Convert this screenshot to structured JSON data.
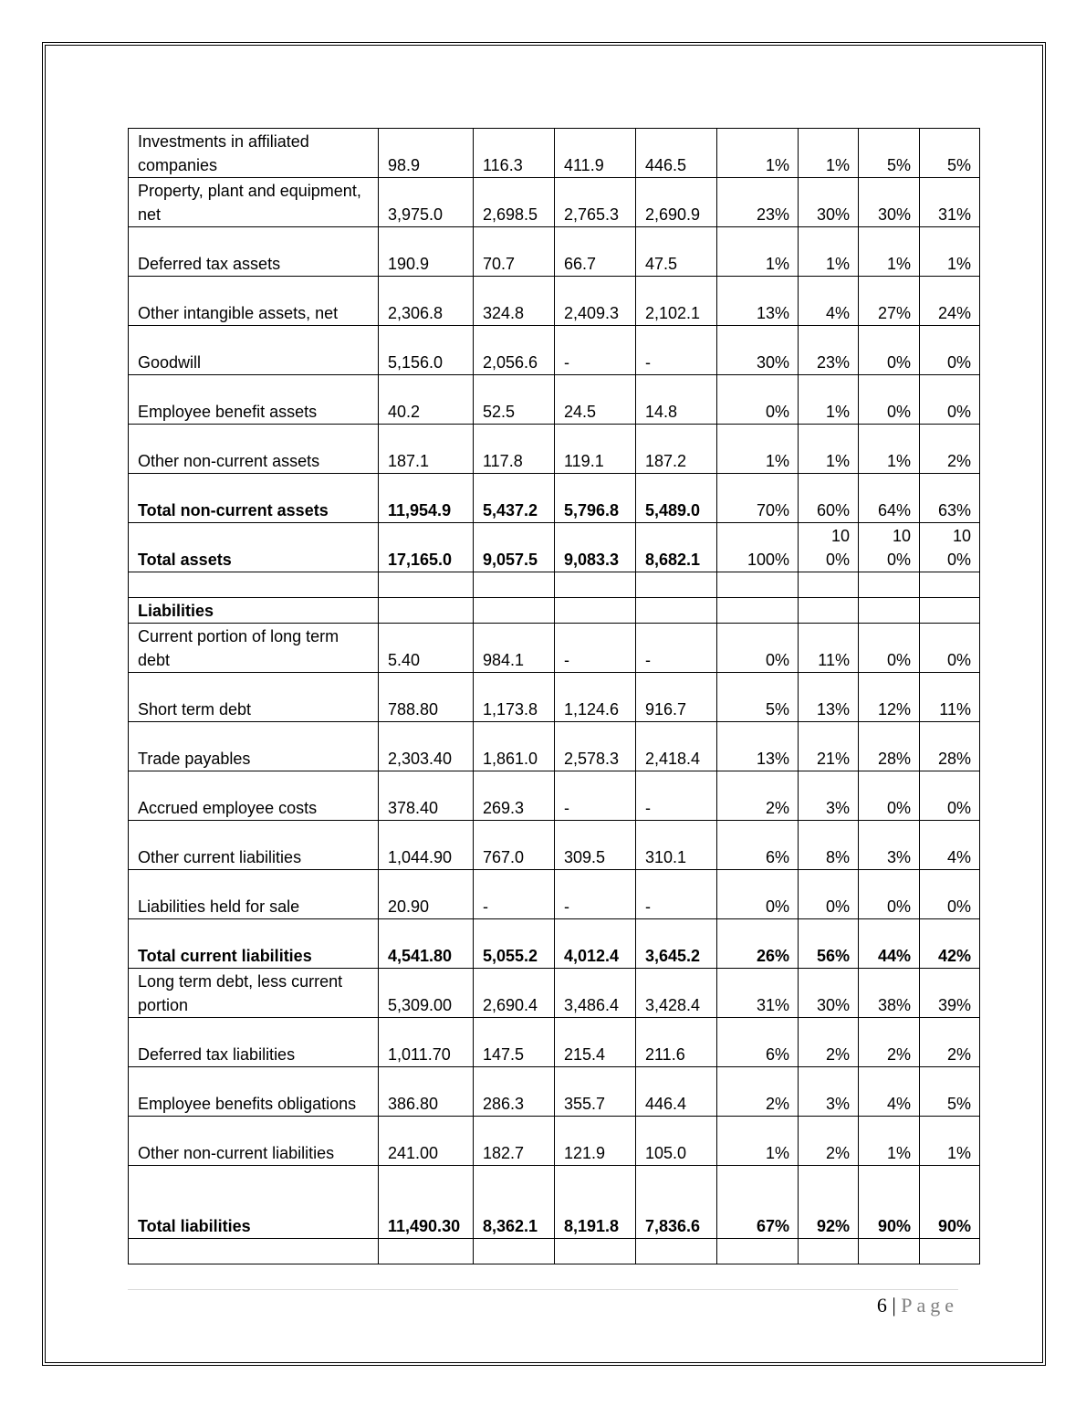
{
  "table": {
    "rows": [
      {
        "label": "Investments in affiliated companies",
        "values": [
          "98.9",
          "116.3",
          "411.9",
          "446.5"
        ],
        "pct": [
          "1%",
          "1%",
          "5%",
          "5%"
        ],
        "h": "r54"
      },
      {
        "label": "Property, plant and equipment, net",
        "values": [
          "3,975.0",
          "2,698.5",
          "2,765.3",
          "2,690.9"
        ],
        "pct": [
          "23%",
          "30%",
          "30%",
          "31%"
        ],
        "h": "r54"
      },
      {
        "label": "Deferred tax assets",
        "values": [
          "190.9",
          "70.7",
          "66.7",
          "47.5"
        ],
        "pct": [
          "1%",
          "1%",
          "1%",
          "1%"
        ],
        "h": "r54"
      },
      {
        "label": "Other intangible assets, net",
        "values": [
          "2,306.8",
          "324.8",
          "2,409.3",
          "2,102.1"
        ],
        "pct": [
          "13%",
          "4%",
          "27%",
          "24%"
        ],
        "h": "r54"
      },
      {
        "label": "Goodwill",
        "values": [
          "5,156.0",
          "2,056.6",
          "-",
          "-"
        ],
        "pct": [
          "30%",
          "23%",
          "0%",
          "0%"
        ],
        "h": "r54"
      },
      {
        "label": "Employee benefit assets",
        "values": [
          "40.2",
          "52.5",
          "24.5",
          "14.8"
        ],
        "pct": [
          "0%",
          "1%",
          "0%",
          "0%"
        ],
        "h": "r54"
      },
      {
        "label": "Other non-current assets",
        "values": [
          "187.1",
          "117.8",
          "119.1",
          "187.2"
        ],
        "pct": [
          "1%",
          "1%",
          "1%",
          "2%"
        ],
        "h": "r54"
      },
      {
        "label": "Total non-current assets",
        "values": [
          "11,954.9",
          "5,437.2",
          "5,796.8",
          "5,489.0"
        ],
        "pct": [
          "70%",
          "60%",
          "64%",
          "63%"
        ],
        "h": "r54",
        "bold_label": true,
        "bold_values": true
      },
      {
        "label": "Total assets",
        "values": [
          "17,165.0",
          "9,057.5",
          "9,083.3",
          "8,682.1"
        ],
        "pct": [
          "100%",
          "100%",
          "100%",
          "100%"
        ],
        "h": "r54",
        "bold_label": true,
        "bold_values": true,
        "pct_wrap": true
      },
      {
        "label": "",
        "values": [
          "",
          "",
          "",
          ""
        ],
        "pct": [
          "",
          "",
          "",
          ""
        ],
        "h": "r28"
      },
      {
        "label": "Liabilities",
        "values": [
          "",
          "",
          "",
          ""
        ],
        "pct": [
          "",
          "",
          "",
          ""
        ],
        "h": "r28",
        "bold_label": true
      },
      {
        "label": "Current portion of long term debt",
        "values": [
          "5.40",
          "984.1",
          "-",
          "-"
        ],
        "pct": [
          "0%",
          "11%",
          "0%",
          "0%"
        ],
        "h": "r54"
      },
      {
        "label": "Short term debt",
        "values": [
          "788.80",
          "1,173.8",
          "1,124.6",
          "916.7"
        ],
        "pct": [
          "5%",
          "13%",
          "12%",
          "11%"
        ],
        "h": "r54"
      },
      {
        "label": "Trade payables",
        "values": [
          "2,303.40",
          "1,861.0",
          "2,578.3",
          "2,418.4"
        ],
        "pct": [
          "13%",
          "21%",
          "28%",
          "28%"
        ],
        "h": "r54"
      },
      {
        "label": "Accrued employee costs",
        "values": [
          "378.40",
          "269.3",
          "-",
          "-"
        ],
        "pct": [
          "2%",
          "3%",
          "0%",
          "0%"
        ],
        "h": "r54"
      },
      {
        "label": "Other current liabilities",
        "values": [
          "1,044.90",
          "767.0",
          "309.5",
          "310.1"
        ],
        "pct": [
          "6%",
          "8%",
          "3%",
          "4%"
        ],
        "h": "r54"
      },
      {
        "label": "Liabilities held for sale",
        "values": [
          "20.90",
          "-",
          "-",
          "-"
        ],
        "pct": [
          "0%",
          "0%",
          "0%",
          "0%"
        ],
        "h": "r54"
      },
      {
        "label": "Total current liabilities",
        "values": [
          "4,541.80",
          "5,055.2",
          "4,012.4",
          "3,645.2"
        ],
        "pct": [
          "26%",
          "56%",
          "44%",
          "42%"
        ],
        "h": "r54",
        "bold_label": true,
        "bold_values": true,
        "bold_pct": true
      },
      {
        "label": "Long term debt, less current portion",
        "values": [
          "5,309.00",
          "2,690.4",
          "3,486.4",
          "3,428.4"
        ],
        "pct": [
          "31%",
          "30%",
          "38%",
          "39%"
        ],
        "h": "r54"
      },
      {
        "label": "Deferred tax liabilities",
        "values": [
          "1,011.70",
          "147.5",
          "215.4",
          "211.6"
        ],
        "pct": [
          "6%",
          "2%",
          "2%",
          "2%"
        ],
        "h": "r54"
      },
      {
        "label": "Employee benefits obligations",
        "values": [
          "386.80",
          "286.3",
          "355.7",
          "446.4"
        ],
        "pct": [
          "2%",
          "3%",
          "4%",
          "5%"
        ],
        "h": "r54"
      },
      {
        "label": "Other non-current liabilities",
        "values": [
          "241.00",
          "182.7",
          "121.9",
          "105.0"
        ],
        "pct": [
          "1%",
          "2%",
          "1%",
          "1%"
        ],
        "h": "r54"
      },
      {
        "label": "Total liabilities",
        "values": [
          "11,490.30",
          "8,362.1",
          "8,191.8",
          "7,836.6"
        ],
        "pct": [
          "67%",
          "92%",
          "90%",
          "90%"
        ],
        "h": "r80",
        "bold_label": true,
        "bold_values": true,
        "bold_pct": true,
        "first_value_wrap": true
      },
      {
        "label": "",
        "values": [
          "",
          "",
          "",
          ""
        ],
        "pct": [
          "",
          "",
          "",
          ""
        ],
        "h": "r28"
      }
    ]
  },
  "footer": {
    "page_number": "6",
    "separator": "|",
    "page_label": "Page"
  }
}
